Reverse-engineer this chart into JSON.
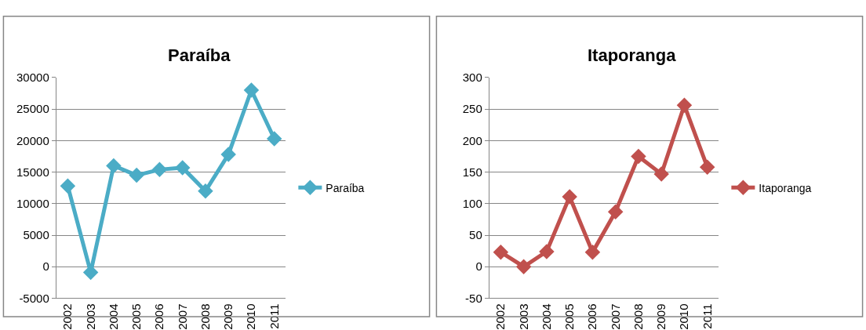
{
  "chart_data": [
    {
      "type": "line",
      "title": "Paraíba",
      "categories": [
        "2002",
        "2003",
        "2004",
        "2005",
        "2006",
        "2007",
        "2008",
        "2009",
        "2010",
        "2011"
      ],
      "series": [
        {
          "name": "Paraíba",
          "color": "#4bacc6",
          "values": [
            12800,
            -900,
            16000,
            14500,
            15400,
            15700,
            12000,
            17800,
            28000,
            20300
          ]
        }
      ],
      "ylim": [
        -5000,
        30000
      ],
      "yticks": [
        -5000,
        0,
        5000,
        10000,
        15000,
        20000,
        25000,
        30000
      ],
      "grid": "y",
      "legend": "right",
      "marker": "diamond",
      "line_style": "solid"
    },
    {
      "type": "line",
      "title": "Itaporanga",
      "categories": [
        "2002",
        "2003",
        "2004",
        "2005",
        "2006",
        "2007",
        "2008",
        "2009",
        "2010",
        "2011"
      ],
      "series": [
        {
          "name": "Itaporanga",
          "color": "#c0504d",
          "values": [
            23,
            0,
            24,
            111,
            23,
            87,
            175,
            147,
            256,
            158
          ]
        }
      ],
      "ylim": [
        -50,
        300
      ],
      "yticks": [
        -50,
        0,
        50,
        100,
        150,
        200,
        250,
        300
      ],
      "grid": "y",
      "legend": "right",
      "marker": "diamond",
      "line_style": "solid"
    }
  ]
}
